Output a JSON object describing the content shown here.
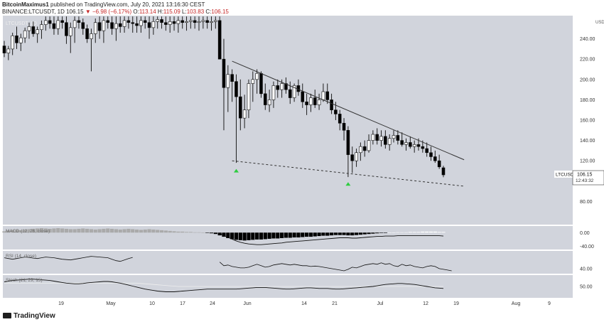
{
  "header": {
    "author": "BitcoinMaximus1",
    "published": "published on TradingView.com, July 20, 2021 13:16:30 CEST",
    "symbol_line": "BINANCE:LTCUSDT, 1D",
    "last": "106.15",
    "change": "−6.98 (−6.17%)",
    "open_label": "O:",
    "open": "113.14",
    "high_label": "H:",
    "high": "115.09",
    "low_label": "L:",
    "low": "103.83",
    "close_label": "C:",
    "close": "106.15"
  },
  "footer": {
    "logo": "TradingView"
  },
  "colors": {
    "pane_bg": "#d1d4dc",
    "bull": "#ffffff",
    "bear": "#000000",
    "wick": "#1e1e1e",
    "signal_up": "#2ecc40",
    "signal_down": "#e53935"
  },
  "chart_data": [
    {
      "type": "candlestick",
      "unit": "USDT",
      "ylim": [
        60,
        260
      ],
      "y_ticks": [
        "240.00",
        "220.00",
        "200.00",
        "180.00",
        "160.00",
        "140.00",
        "120.00",
        "80.00"
      ],
      "x_ticks": [
        "19",
        "May",
        "10",
        "17",
        "24",
        "Jun",
        "14",
        "21",
        "Jul",
        "12",
        "19",
        "Aug",
        "9"
      ],
      "price_tag": {
        "symbol": "LTCUSDT",
        "value": "106.15",
        "countdown": "12:43:32"
      },
      "pane_label": "LTCUSDT, 1D",
      "candles_ohlc": [
        [
          233,
          238,
          222,
          226
        ],
        [
          226,
          233,
          219,
          230
        ],
        [
          230,
          246,
          224,
          243
        ],
        [
          243,
          252,
          230,
          236
        ],
        [
          236,
          245,
          228,
          241
        ],
        [
          241,
          251,
          236,
          248
        ],
        [
          248,
          256,
          240,
          252
        ],
        [
          252,
          257,
          242,
          245
        ],
        [
          245,
          252,
          236,
          249
        ],
        [
          249,
          258,
          240,
          254
        ],
        [
          254,
          262,
          248,
          258
        ],
        [
          258,
          262,
          250,
          255
        ],
        [
          255,
          262,
          244,
          250
        ],
        [
          250,
          262,
          244,
          258
        ],
        [
          258,
          262,
          250,
          256
        ],
        [
          256,
          262,
          235,
          243
        ],
        [
          243,
          256,
          226,
          251
        ],
        [
          251,
          262,
          236,
          258
        ],
        [
          258,
          262,
          250,
          256
        ],
        [
          256,
          260,
          244,
          250
        ],
        [
          250,
          254,
          236,
          240
        ],
        [
          240,
          250,
          208,
          245
        ],
        [
          245,
          260,
          236,
          256
        ],
        [
          256,
          262,
          240,
          248
        ],
        [
          248,
          262,
          236,
          258
        ],
        [
          258,
          262,
          250,
          256
        ],
        [
          256,
          262,
          244,
          250
        ],
        [
          250,
          262,
          238,
          255
        ],
        [
          255,
          262,
          246,
          252
        ],
        [
          252,
          262,
          246,
          258
        ],
        [
          258,
          262,
          250,
          256
        ],
        [
          256,
          262,
          246,
          255
        ],
        [
          255,
          262,
          246,
          253
        ],
        [
          253,
          262,
          246,
          258
        ],
        [
          258,
          262,
          250,
          256
        ],
        [
          256,
          262,
          240,
          251
        ],
        [
          251,
          262,
          244,
          257
        ],
        [
          257,
          262,
          250,
          259
        ],
        [
          259,
          262,
          250,
          256
        ],
        [
          256,
          262,
          248,
          254
        ],
        [
          254,
          262,
          246,
          257
        ],
        [
          257,
          262,
          248,
          255
        ],
        [
          255,
          262,
          246,
          258
        ],
        [
          258,
          262,
          250,
          256
        ],
        [
          256,
          262,
          248,
          257
        ],
        [
          257,
          262,
          250,
          258
        ],
        [
          258,
          262,
          250,
          256
        ],
        [
          256,
          262,
          248,
          257
        ],
        [
          257,
          262,
          250,
          258
        ],
        [
          258,
          262,
          250,
          256
        ],
        [
          256,
          262,
          248,
          257
        ],
        [
          257,
          262,
          250,
          258
        ],
        [
          258,
          262,
          246,
          220
        ],
        [
          220,
          240,
          150,
          192
        ],
        [
          192,
          214,
          168,
          205
        ],
        [
          205,
          210,
          178,
          198
        ],
        [
          198,
          205,
          118,
          183
        ],
        [
          183,
          200,
          150,
          162
        ],
        [
          162,
          185,
          152,
          170
        ],
        [
          170,
          200,
          162,
          196
        ],
        [
          196,
          208,
          178,
          200
        ],
        [
          200,
          210,
          186,
          206
        ],
        [
          206,
          208,
          182,
          186
        ],
        [
          186,
          196,
          170,
          175
        ],
        [
          175,
          190,
          168,
          180
        ],
        [
          180,
          198,
          172,
          194
        ],
        [
          194,
          200,
          182,
          190
        ],
        [
          190,
          200,
          182,
          196
        ],
        [
          196,
          202,
          186,
          190
        ],
        [
          190,
          198,
          176,
          182
        ],
        [
          182,
          196,
          178,
          194
        ],
        [
          194,
          200,
          184,
          188
        ],
        [
          188,
          196,
          172,
          178
        ],
        [
          178,
          186,
          165,
          175
        ],
        [
          175,
          186,
          168,
          182
        ],
        [
          182,
          190,
          172,
          175
        ],
        [
          175,
          186,
          170,
          180
        ],
        [
          180,
          196,
          178,
          188
        ],
        [
          188,
          196,
          176,
          180
        ],
        [
          180,
          186,
          166,
          170
        ],
        [
          170,
          178,
          160,
          166
        ],
        [
          166,
          170,
          150,
          157
        ],
        [
          157,
          162,
          140,
          150
        ],
        [
          150,
          154,
          104,
          126
        ],
        [
          126,
          134,
          108,
          120
        ],
        [
          120,
          132,
          114,
          128
        ],
        [
          128,
          138,
          120,
          134
        ],
        [
          134,
          140,
          124,
          130
        ],
        [
          130,
          146,
          128,
          140
        ],
        [
          140,
          150,
          136,
          146
        ],
        [
          146,
          152,
          136,
          140
        ],
        [
          140,
          150,
          134,
          144
        ],
        [
          144,
          150,
          132,
          136
        ],
        [
          136,
          146,
          130,
          142
        ],
        [
          142,
          150,
          138,
          145
        ],
        [
          145,
          150,
          136,
          140
        ],
        [
          140,
          148,
          134,
          136
        ],
        [
          136,
          142,
          130,
          138
        ],
        [
          138,
          144,
          132,
          134
        ],
        [
          134,
          140,
          128,
          136
        ],
        [
          136,
          142,
          130,
          134
        ],
        [
          134,
          140,
          128,
          132
        ],
        [
          132,
          138,
          124,
          128
        ],
        [
          128,
          134,
          120,
          124
        ],
        [
          124,
          130,
          118,
          120
        ],
        [
          120,
          126,
          112,
          114
        ],
        [
          113.14,
          115.09,
          103.83,
          106.15
        ]
      ],
      "trendlines": [
        {
          "name": "upper-resistance",
          "style": "solid",
          "from": [
            55,
            218
          ],
          "to": [
            111,
            121
          ]
        },
        {
          "name": "lower-support",
          "style": "dashed",
          "from": [
            55,
            120
          ],
          "to": [
            111,
            95
          ]
        }
      ],
      "signals": [
        {
          "type": "up",
          "index": 56,
          "price": 112
        },
        {
          "type": "up",
          "index": 83,
          "price": 99
        }
      ]
    },
    {
      "type": "histogram",
      "pane": "MACD",
      "label": "MACD (12, 26, close)",
      "y_ticks": [
        "0.00",
        "-40.00"
      ],
      "ylim": [
        -45,
        15
      ],
      "histogram": [
        4,
        6,
        8,
        8,
        7,
        9,
        10,
        11,
        12,
        13,
        12,
        11,
        12,
        13,
        12,
        11,
        10,
        10,
        11,
        12,
        11,
        10,
        9,
        10,
        11,
        12,
        11,
        10,
        9,
        10,
        11,
        10,
        9,
        8,
        9,
        10,
        9,
        8,
        7,
        6,
        5,
        4,
        3,
        3,
        2,
        2,
        1,
        1,
        0,
        -1,
        -2,
        -4,
        -8,
        -12,
        -16,
        -19,
        -21,
        -22,
        -23,
        -22,
        -21,
        -20,
        -20,
        -19,
        -18,
        -17,
        -17,
        -16,
        -15,
        -15,
        -14,
        -14,
        -13,
        -12,
        -12,
        -11,
        -10,
        -9,
        -9,
        -8,
        -7,
        -7,
        -7,
        -8,
        -8,
        -7,
        -6,
        -5,
        -4,
        -3,
        -2,
        -1,
        -1,
        0,
        0,
        1,
        1,
        1,
        2,
        2,
        2,
        3,
        3,
        3,
        3,
        2,
        2
      ],
      "line": [
        null,
        null,
        null,
        null,
        null,
        null,
        null,
        null,
        null,
        null,
        null,
        null,
        null,
        null,
        null,
        null,
        null,
        null,
        null,
        null,
        null,
        null,
        null,
        null,
        null,
        null,
        null,
        null,
        null,
        null,
        null,
        null,
        null,
        null,
        null,
        null,
        null,
        null,
        null,
        null,
        null,
        null,
        null,
        null,
        null,
        null,
        null,
        null,
        null,
        null,
        null,
        null,
        -2,
        -8,
        -14,
        -19,
        -24,
        -28,
        -31,
        -33,
        -34,
        -35,
        -35,
        -34,
        -33,
        -32,
        -31,
        -30,
        -28,
        -27,
        -26,
        -25,
        -24,
        -23,
        -22,
        -21,
        -20,
        -19,
        -18,
        -17,
        -16,
        -15,
        -15,
        -15,
        -16,
        -16,
        -15,
        -14,
        -13,
        -12,
        -11,
        -11,
        -10,
        -10,
        -10,
        -9,
        -9,
        -9,
        -9,
        -9,
        -9,
        -9,
        -9,
        -9,
        -9,
        -9,
        -10
      ]
    },
    {
      "type": "line",
      "pane": "RSI",
      "label": "RSI (14, close)",
      "y_ticks": [
        "40.00"
      ],
      "ylim": [
        30,
        85
      ],
      "values": [
        70,
        68,
        66,
        68,
        70,
        72,
        71,
        69,
        68,
        70,
        72,
        71,
        70,
        68,
        66,
        65,
        64,
        66,
        68,
        70,
        72,
        74,
        73,
        72,
        71,
        70,
        66,
        62,
        60,
        64,
        68,
        71,
        72,
        72,
        72,
        72,
        72,
        72,
        72,
        72,
        72,
        72,
        72,
        72,
        72,
        72,
        72,
        72,
        72,
        72,
        72,
        72,
        58,
        48,
        50,
        46,
        44,
        42,
        42,
        44,
        48,
        52,
        48,
        44,
        46,
        50,
        52,
        54,
        52,
        50,
        52,
        50,
        48,
        48,
        46,
        47,
        46,
        44,
        42,
        40,
        38,
        36,
        34,
        38,
        44,
        42,
        46,
        50,
        52,
        54,
        52,
        56,
        52,
        54,
        48,
        46,
        52,
        48,
        50,
        46,
        44,
        42,
        46,
        48,
        46,
        40,
        38,
        36,
        34
      ],
      "min_index_visible": 0
    },
    {
      "type": "line",
      "pane": "Stoch",
      "label": "Stoch (21, 29, 15)",
      "y_ticks": [
        "50.00"
      ],
      "ylim": [
        20,
        80
      ],
      "values": [
        64,
        66,
        68,
        69,
        70,
        71,
        72,
        72,
        71,
        70,
        69,
        68,
        66,
        64,
        62,
        60,
        59,
        58,
        58,
        59,
        61,
        62,
        63,
        64,
        65,
        65,
        64,
        62,
        60,
        57,
        54,
        51,
        48,
        45,
        42,
        40,
        38,
        36,
        35,
        34,
        34,
        34,
        35,
        36,
        37,
        38,
        39,
        40,
        41,
        42,
        42,
        42,
        42,
        42,
        42,
        42,
        42,
        43,
        44,
        45,
        46,
        47,
        47,
        47,
        46,
        45,
        44,
        43,
        42,
        42,
        43,
        44,
        45,
        46,
        46,
        45,
        44,
        44,
        44,
        43,
        42,
        42,
        43,
        44,
        45,
        46,
        47,
        48,
        49,
        50,
        52,
        54,
        56,
        57,
        58,
        59,
        59,
        58,
        57,
        56,
        54,
        52,
        50,
        48,
        46,
        45,
        44
      ],
      "signal_line": [
        60,
        60,
        60,
        60,
        60,
        60,
        60,
        60,
        60,
        60,
        60,
        60,
        60,
        60,
        60,
        60,
        60,
        60,
        60,
        60,
        60,
        60,
        60,
        60,
        60,
        60,
        60,
        60,
        60,
        60,
        60,
        60,
        60,
        59,
        58,
        57,
        56,
        55,
        54,
        53,
        52,
        51,
        50,
        50,
        50,
        50,
        50,
        50,
        50,
        50,
        50,
        50,
        50,
        50,
        50,
        50,
        50,
        50,
        50,
        50,
        50,
        50,
        50,
        50,
        50,
        50,
        50,
        50,
        50,
        50,
        50,
        50,
        50,
        50,
        50,
        50,
        50,
        50,
        50,
        50,
        50,
        50,
        50,
        50,
        50,
        50,
        50,
        50,
        50,
        50,
        50,
        50,
        50,
        50,
        50,
        50,
        50,
        50,
        50,
        50,
        50,
        50,
        50,
        50,
        50,
        50,
        50
      ],
      "signals": [
        {
          "type": "down",
          "index": 107
        }
      ]
    }
  ]
}
